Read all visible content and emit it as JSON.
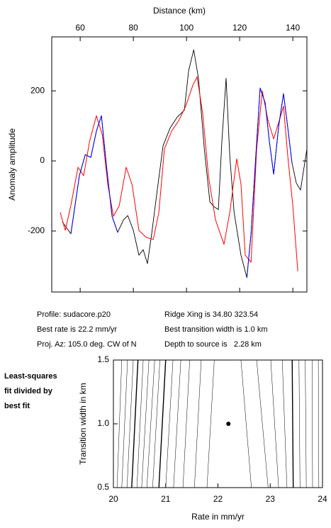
{
  "chart_data": [
    {
      "type": "line",
      "x_label": "Distance (km)",
      "y_label": "Anomaly amplitude",
      "xlim": [
        49.3,
        145.3
      ],
      "ylim": [
        -374,
        354
      ],
      "xticks": [
        60,
        80,
        100,
        120,
        140
      ],
      "yticks": [
        -200,
        0,
        200
      ],
      "series": [
        {
          "color": "#000000",
          "x": [
            53.3,
            56.5,
            59.7,
            61.9,
            64,
            66.1,
            68,
            69.9,
            72,
            74.1,
            76.3,
            77.9,
            80,
            82.1,
            83.7,
            85.3,
            86.9,
            89,
            91.2,
            93.9,
            96.5,
            99.2,
            100.8,
            102.7,
            104.5,
            106.7,
            108.8,
            110.4,
            112,
            113.3,
            114.9,
            116.3,
            117.9,
            120.5,
            122.7,
            124.3,
            125.9,
            127.7,
            129.6,
            131.2,
            132.8,
            134.7,
            136.5,
            138.1,
            139.7,
            141.3,
            142.9,
            145.3
          ],
          "values": [
            -174,
            -208,
            -42,
            18,
            10,
            85,
            129,
            -16,
            -158,
            -204,
            -168,
            -156,
            -198,
            -269,
            -253,
            -293,
            -208,
            -83,
            44,
            95,
            125,
            145,
            257,
            317,
            236,
            34,
            -117,
            -131,
            -139,
            55,
            236,
            14,
            -147,
            -269,
            -333,
            -208,
            -6,
            208,
            166,
            55,
            -38,
            99,
            192,
            95,
            -6,
            -63,
            -83,
            34
          ]
        },
        {
          "color": "#ff0000",
          "x": [
            52.5,
            54.4,
            56.5,
            59.2,
            61.3,
            63.5,
            66.1,
            68.3,
            70.4,
            72.5,
            74.7,
            77.3,
            79.5,
            82.1,
            84.8,
            87.5,
            89.6,
            91.7,
            94.4,
            97.1,
            99.7,
            102.4,
            104,
            106.1,
            108.3,
            110.9,
            114.1,
            116.3,
            118.9,
            120.5,
            122.1,
            124.3,
            126.4,
            128.5,
            130.7,
            132.8,
            134.9,
            136.5,
            138.1,
            140,
            141.9
          ],
          "values": [
            -147,
            -198,
            -127,
            -18,
            -42,
            55,
            129,
            75,
            -67,
            -158,
            -127,
            -18,
            -67,
            -198,
            -218,
            -224,
            -147,
            34,
            85,
            115,
            156,
            216,
            240,
            135,
            -46,
            -168,
            -238,
            -147,
            6,
            -67,
            -269,
            -289,
            34,
            200,
            115,
            63,
            115,
            156,
            14,
            -127,
            -315
          ]
        },
        {
          "color": "#0000ff",
          "x": [
            56.5,
            59.7,
            61.9,
            64,
            66.1,
            68,
            69.9,
            72,
            74.1,
            null,
            122.7,
            124.3,
            125.9,
            127.7,
            129.6,
            131.2,
            132.8,
            134.7,
            136.5,
            138.1,
            139.7
          ],
          "values": [
            -208,
            -42,
            18,
            10,
            85,
            129,
            -16,
            -158,
            -204,
            null,
            -333,
            -208,
            -6,
            208,
            166,
            55,
            -38,
            99,
            192,
            95,
            -6
          ]
        }
      ]
    },
    {
      "type": "contour",
      "x_label": "Rate in mm/yr",
      "y_label": "Transition width in km",
      "xlim": [
        20,
        24
      ],
      "ylim": [
        0.5,
        1.5
      ],
      "xticks": [
        20,
        21,
        22,
        23,
        24
      ],
      "yticks": [
        {
          "value": 0.5,
          "label": "0.5"
        },
        {
          "value": 1.0,
          "label": "1.0"
        },
        {
          "value": 1.5,
          "label": "1.5"
        }
      ],
      "annotation_lines": [
        "Least-squares",
        "fit divided by",
        "best fit"
      ],
      "best_point": {
        "x": 22.2,
        "y": 1.0
      },
      "contours": [
        {
          "x_bottom": 20.07,
          "x_top": 20.16,
          "bold": false
        },
        {
          "x_bottom": 20.16,
          "x_top": 20.27,
          "bold": false
        },
        {
          "x_bottom": 20.26,
          "x_top": 20.38,
          "bold": false
        },
        {
          "x_bottom": 20.35,
          "x_top": 20.47,
          "bold": true
        },
        {
          "x_bottom": 20.45,
          "x_top": 20.57,
          "bold": false
        },
        {
          "x_bottom": 20.54,
          "x_top": 20.68,
          "bold": false
        },
        {
          "x_bottom": 20.64,
          "x_top": 20.79,
          "bold": false
        },
        {
          "x_bottom": 20.75,
          "x_top": 20.89,
          "bold": false
        },
        {
          "x_bottom": 20.87,
          "x_top": 21.0,
          "bold": true
        },
        {
          "x_bottom": 21.0,
          "x_top": 21.14,
          "bold": false
        },
        {
          "x_bottom": 21.15,
          "x_top": 21.29,
          "bold": false
        },
        {
          "x_bottom": 21.33,
          "x_top": 21.46,
          "bold": false
        },
        {
          "x_bottom": 21.55,
          "x_top": 21.68,
          "bold": false
        },
        {
          "x_bottom": 21.79,
          "x_top": 21.93,
          "bold": false
        },
        {
          "x_bottom": 22.64,
          "x_top": 22.44,
          "bold": false
        },
        {
          "x_bottom": 22.96,
          "x_top": 22.74,
          "bold": false
        },
        {
          "x_bottom": 23.16,
          "x_top": 23.01,
          "bold": false
        },
        {
          "x_bottom": 23.32,
          "x_top": 23.23,
          "bold": false
        },
        {
          "x_bottom": 23.44,
          "x_top": 23.42,
          "bold": true
        },
        {
          "x_bottom": 23.57,
          "x_top": 23.55,
          "bold": false
        },
        {
          "x_bottom": 23.69,
          "x_top": 23.67,
          "bold": false
        },
        {
          "x_bottom": 23.81,
          "x_top": 23.8,
          "bold": false
        },
        {
          "x_bottom": 23.93,
          "x_top": 23.92,
          "bold": false
        }
      ]
    }
  ],
  "info": {
    "profile": "Profile: sudacore.p20",
    "rate": "Best rate is 22.2 mm/yr",
    "azimuth": "Proj. Az: 105.0 deg. CW of N",
    "ridge": "Ridge Xing is 34.80 323.54",
    "width": "Best transition width is 1.0 km",
    "depth": "Depth to source is   2.28 km"
  }
}
